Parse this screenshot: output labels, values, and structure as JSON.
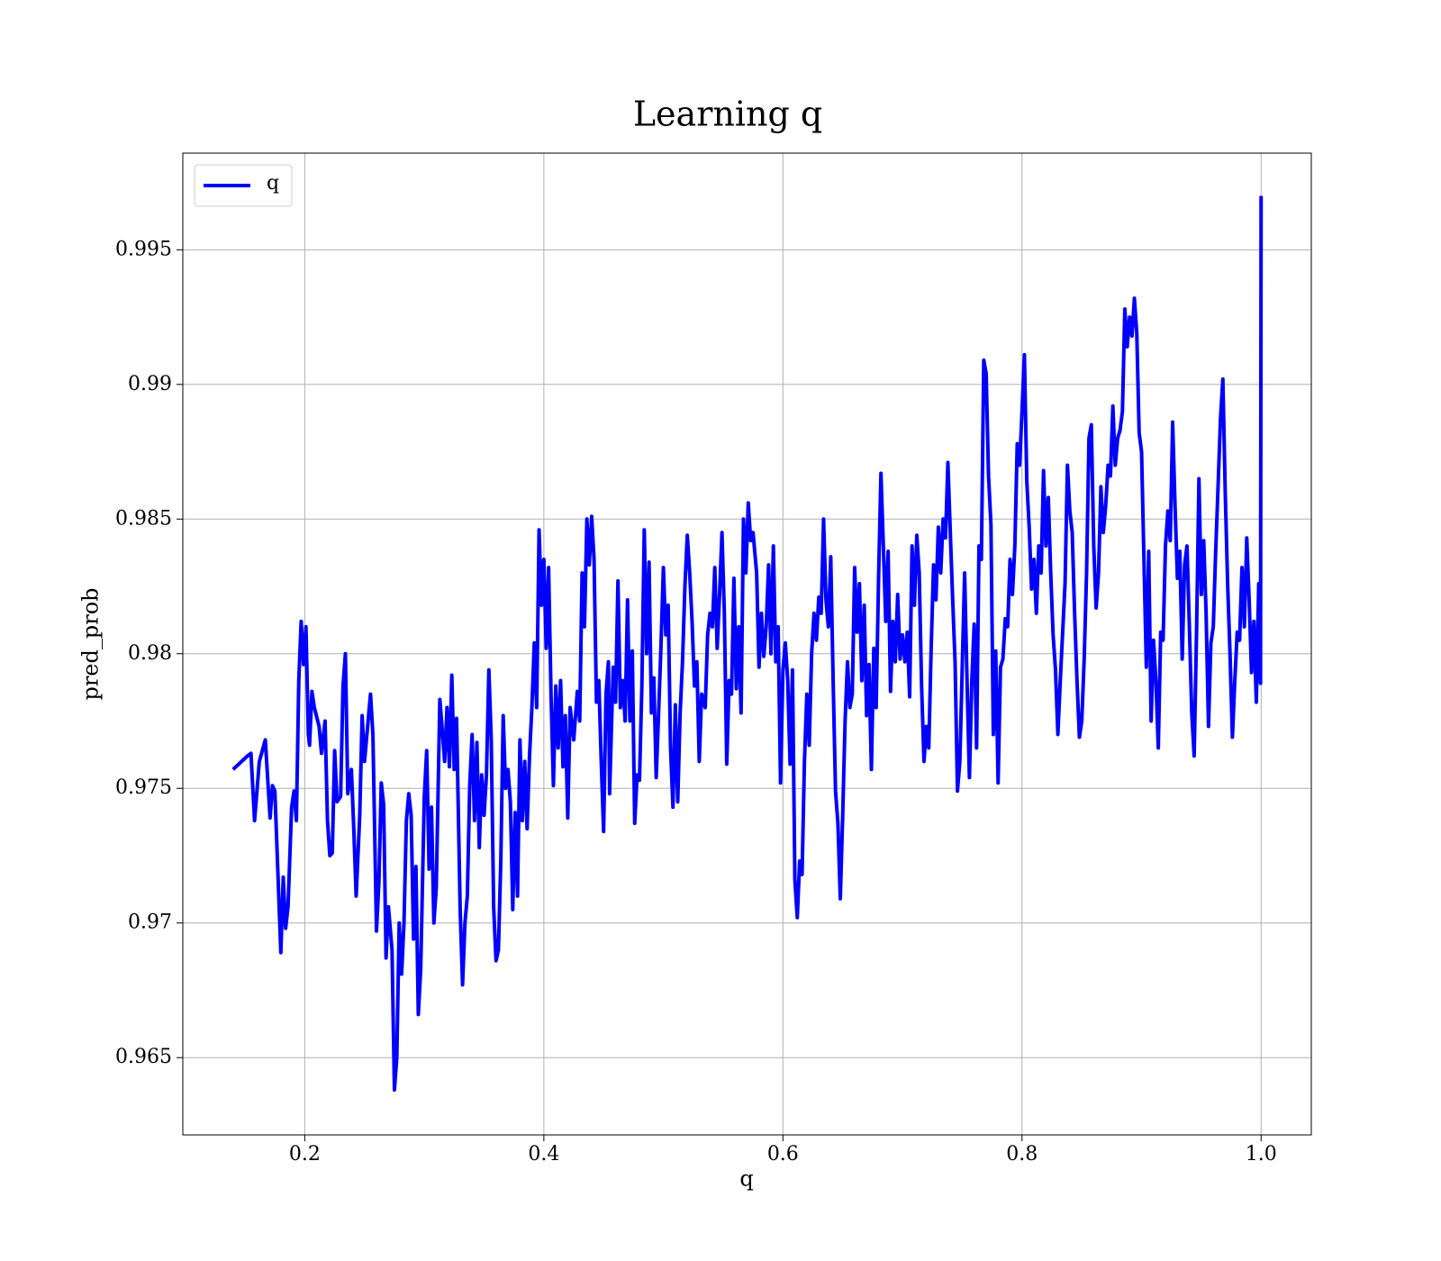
{
  "chart_data": {
    "type": "line",
    "title": "Learning q",
    "xlabel": "q",
    "ylabel": "pred_prob",
    "xlim": [
      0.098,
      1.042
    ],
    "ylim": [
      0.96213,
      0.99859
    ],
    "xticks": [
      0.2,
      0.4,
      0.6,
      0.8,
      {
        "value": 1,
        "label": "1.0"
      }
    ],
    "yticks": [
      0.965,
      0.97,
      0.975,
      0.98,
      0.985,
      0.99,
      0.995
    ],
    "grid": true,
    "legend": "upper left",
    "x": [
      0.14,
      0.152,
      0.155,
      0.158,
      0.162,
      0.167,
      0.171,
      0.173,
      0.175,
      0.18,
      0.182,
      0.184,
      0.186,
      0.189,
      0.191,
      0.193,
      0.195,
      0.197,
      0.199,
      0.201,
      0.203,
      0.204,
      0.206,
      0.208,
      0.212,
      0.214,
      0.217,
      0.219,
      0.221,
      0.223,
      0.225,
      0.227,
      0.23,
      0.232,
      0.234,
      0.236,
      0.239,
      0.241,
      0.243,
      0.246,
      0.248,
      0.25,
      0.255,
      0.257,
      0.26,
      0.262,
      0.264,
      0.266,
      0.268,
      0.27,
      0.273,
      0.275,
      0.277,
      0.279,
      0.281,
      0.283,
      0.285,
      0.287,
      0.289,
      0.291,
      0.293,
      0.295,
      0.297,
      0.3,
      0.302,
      0.304,
      0.306,
      0.308,
      0.31,
      0.313,
      0.315,
      0.317,
      0.319,
      0.321,
      0.323,
      0.325,
      0.327,
      0.33,
      0.332,
      0.334,
      0.336,
      0.338,
      0.34,
      0.342,
      0.344,
      0.346,
      0.348,
      0.35,
      0.352,
      0.354,
      0.356,
      0.358,
      0.36,
      0.362,
      0.364,
      0.366,
      0.368,
      0.37,
      0.372,
      0.374,
      0.376,
      0.378,
      0.38,
      0.382,
      0.384,
      0.386,
      0.388,
      0.39,
      0.392,
      0.394,
      0.396,
      0.398,
      0.4,
      0.402,
      0.404,
      0.406,
      0.408,
      0.41,
      0.412,
      0.414,
      0.416,
      0.418,
      0.42,
      0.422,
      0.425,
      0.428,
      0.43,
      0.432,
      0.434,
      0.436,
      0.438,
      0.44,
      0.442,
      0.444,
      0.446,
      0.448,
      0.45,
      0.452,
      0.454,
      0.455,
      0.458,
      0.46,
      0.462,
      0.464,
      0.466,
      0.468,
      0.47,
      0.472,
      0.474,
      0.476,
      0.478,
      0.48,
      0.482,
      0.484,
      0.486,
      0.488,
      0.49,
      0.492,
      0.494,
      0.496,
      0.498,
      0.5,
      0.502,
      0.504,
      0.506,
      0.508,
      0.51,
      0.512,
      0.514,
      0.516,
      0.518,
      0.52,
      0.522,
      0.524,
      0.526,
      0.528,
      0.53,
      0.532,
      0.535,
      0.537,
      0.539,
      0.541,
      0.543,
      0.545,
      0.547,
      0.549,
      0.551,
      0.553,
      0.555,
      0.557,
      0.559,
      0.561,
      0.563,
      0.565,
      0.567,
      0.569,
      0.571,
      0.573,
      0.575,
      0.578,
      0.58,
      0.582,
      0.584,
      0.586,
      0.588,
      0.59,
      0.592,
      0.594,
      0.596,
      0.598,
      0.6,
      0.602,
      0.604,
      0.606,
      0.608,
      0.61,
      0.612,
      0.614,
      0.616,
      0.618,
      0.62,
      0.622,
      0.624,
      0.626,
      0.628,
      0.63,
      0.632,
      0.634,
      0.636,
      0.638,
      0.64,
      0.642,
      0.644,
      0.646,
      0.648,
      0.65,
      0.652,
      0.654,
      0.656,
      0.658,
      0.66,
      0.662,
      0.664,
      0.666,
      0.668,
      0.67,
      0.672,
      0.674,
      0.676,
      0.678,
      0.68,
      0.682,
      0.684,
      0.686,
      0.688,
      0.69,
      0.692,
      0.694,
      0.696,
      0.698,
      0.7,
      0.702,
      0.704,
      0.706,
      0.708,
      0.71,
      0.712,
      0.714,
      0.716,
      0.718,
      0.72,
      0.722,
      0.724,
      0.726,
      0.728,
      0.73,
      0.732,
      0.734,
      0.736,
      0.738,
      0.74,
      0.742,
      0.744,
      0.746,
      0.748,
      0.75,
      0.752,
      0.754,
      0.756,
      0.758,
      0.76,
      0.762,
      0.764,
      0.766,
      0.768,
      0.77,
      0.772,
      0.774,
      0.776,
      0.778,
      0.78,
      0.782,
      0.784,
      0.786,
      0.788,
      0.79,
      0.792,
      0.794,
      0.796,
      0.798,
      0.8,
      0.802,
      0.804,
      0.806,
      0.808,
      0.81,
      0.812,
      0.814,
      0.816,
      0.818,
      0.82,
      0.822,
      0.824,
      0.826,
      0.828,
      0.83,
      0.832,
      0.834,
      0.836,
      0.838,
      0.84,
      0.842,
      0.844,
      0.846,
      0.848,
      0.85,
      0.852,
      0.854,
      0.856,
      0.858,
      0.86,
      0.862,
      0.864,
      0.866,
      0.868,
      0.87,
      0.872,
      0.874,
      0.876,
      0.878,
      0.88,
      0.882,
      0.884,
      0.886,
      0.888,
      0.89,
      0.892,
      0.894,
      0.896,
      0.898,
      0.9,
      0.902,
      0.904,
      0.906,
      0.908,
      0.91,
      0.912,
      0.914,
      0.916,
      0.918,
      0.92,
      0.922,
      0.924,
      0.926,
      0.928,
      0.93,
      0.932,
      0.934,
      0.936,
      0.938,
      0.94,
      0.942,
      0.944,
      0.946,
      0.948,
      0.95,
      0.952,
      0.954,
      0.956,
      0.958,
      0.96,
      0.962,
      0.964,
      0.966,
      0.968,
      0.97,
      0.972,
      0.974,
      0.976,
      0.978,
      0.98,
      0.982,
      0.984,
      0.986,
      0.988,
      0.99,
      0.992,
      0.994,
      0.996,
      0.998,
      0.9995,
      1.0
    ],
    "series": [
      {
        "name": "q",
        "color": "#0000ff",
        "values": [
          0.9757,
          0.9762,
          0.9763,
          0.9738,
          0.976,
          0.9768,
          0.9739,
          0.9751,
          0.9749,
          0.9689,
          0.9717,
          0.9698,
          0.9706,
          0.9743,
          0.9749,
          0.9738,
          0.979,
          0.9812,
          0.9796,
          0.981,
          0.977,
          0.9766,
          0.9786,
          0.978,
          0.9773,
          0.9763,
          0.9775,
          0.9738,
          0.9725,
          0.9726,
          0.9764,
          0.9745,
          0.9747,
          0.9788,
          0.98,
          0.9748,
          0.9757,
          0.9735,
          0.971,
          0.974,
          0.9777,
          0.976,
          0.9785,
          0.977,
          0.9697,
          0.9715,
          0.9752,
          0.9744,
          0.9687,
          0.9706,
          0.969,
          0.9638,
          0.965,
          0.97,
          0.9681,
          0.97,
          0.9738,
          0.9748,
          0.974,
          0.9694,
          0.9721,
          0.9666,
          0.9683,
          0.9747,
          0.9764,
          0.972,
          0.9743,
          0.97,
          0.9713,
          0.9783,
          0.9772,
          0.976,
          0.978,
          0.9758,
          0.9792,
          0.9757,
          0.9776,
          0.9705,
          0.9677,
          0.97,
          0.971,
          0.9751,
          0.977,
          0.9738,
          0.9767,
          0.9728,
          0.9755,
          0.974,
          0.9755,
          0.9794,
          0.9768,
          0.9706,
          0.9686,
          0.969,
          0.9723,
          0.9777,
          0.975,
          0.9757,
          0.9745,
          0.9705,
          0.9741,
          0.971,
          0.9768,
          0.9738,
          0.976,
          0.9735,
          0.9762,
          0.978,
          0.9804,
          0.978,
          0.9846,
          0.9818,
          0.9835,
          0.9802,
          0.9832,
          0.9785,
          0.9751,
          0.9788,
          0.9765,
          0.979,
          0.9758,
          0.9777,
          0.9739,
          0.978,
          0.9768,
          0.9786,
          0.9775,
          0.983,
          0.981,
          0.985,
          0.9833,
          0.9851,
          0.9835,
          0.9782,
          0.979,
          0.976,
          0.9734,
          0.9785,
          0.9797,
          0.9748,
          0.9795,
          0.9782,
          0.9827,
          0.978,
          0.979,
          0.9775,
          0.982,
          0.9775,
          0.9801,
          0.9737,
          0.9755,
          0.9753,
          0.9788,
          0.9846,
          0.98,
          0.9834,
          0.9778,
          0.9791,
          0.9754,
          0.9778,
          0.9803,
          0.9832,
          0.9807,
          0.9818,
          0.9765,
          0.9743,
          0.9781,
          0.9745,
          0.9778,
          0.9797,
          0.9825,
          0.9844,
          0.983,
          0.9812,
          0.9788,
          0.9797,
          0.976,
          0.9785,
          0.978,
          0.9807,
          0.9815,
          0.981,
          0.9832,
          0.9802,
          0.9822,
          0.9845,
          0.9815,
          0.9759,
          0.979,
          0.9785,
          0.9828,
          0.9787,
          0.981,
          0.9778,
          0.985,
          0.983,
          0.9856,
          0.9842,
          0.9845,
          0.983,
          0.9795,
          0.9815,
          0.9799,
          0.981,
          0.9833,
          0.98,
          0.984,
          0.9797,
          0.981,
          0.9752,
          0.9794,
          0.9804,
          0.979,
          0.9759,
          0.9794,
          0.9716,
          0.9702,
          0.9723,
          0.9718,
          0.976,
          0.9785,
          0.9766,
          0.98,
          0.9815,
          0.9805,
          0.9821,
          0.9815,
          0.985,
          0.982,
          0.981,
          0.9836,
          0.979,
          0.9749,
          0.9737,
          0.9709,
          0.974,
          0.9775,
          0.9797,
          0.978,
          0.9785,
          0.9832,
          0.9808,
          0.9826,
          0.979,
          0.9818,
          0.9777,
          0.9796,
          0.9757,
          0.9802,
          0.978,
          0.9828,
          0.9867,
          0.984,
          0.9812,
          0.9838,
          0.9786,
          0.9812,
          0.9797,
          0.9822,
          0.9798,
          0.9807,
          0.9797,
          0.9808,
          0.9784,
          0.984,
          0.9818,
          0.9844,
          0.983,
          0.9788,
          0.976,
          0.9773,
          0.9765,
          0.9802,
          0.9833,
          0.982,
          0.9847,
          0.983,
          0.985,
          0.9843,
          0.9871,
          0.9845,
          0.982,
          0.9797,
          0.9749,
          0.976,
          0.9795,
          0.983,
          0.979,
          0.9754,
          0.979,
          0.9811,
          0.9765,
          0.984,
          0.9835,
          0.9909,
          0.9904,
          0.9866,
          0.9848,
          0.977,
          0.9801,
          0.9752,
          0.9795,
          0.9798,
          0.9813,
          0.981,
          0.9835,
          0.9822,
          0.984,
          0.9878,
          0.987,
          0.989,
          0.9911,
          0.9864,
          0.9847,
          0.9824,
          0.9835,
          0.9815,
          0.984,
          0.983,
          0.9868,
          0.984,
          0.9858,
          0.983,
          0.9807,
          0.9794,
          0.977,
          0.979,
          0.9808,
          0.9826,
          0.987,
          0.9853,
          0.9845,
          0.9815,
          0.979,
          0.9769,
          0.9775,
          0.9798,
          0.983,
          0.988,
          0.9885,
          0.984,
          0.9817,
          0.983,
          0.9862,
          0.9845,
          0.9855,
          0.987,
          0.9866,
          0.9892,
          0.987,
          0.988,
          0.9883,
          0.989,
          0.9928,
          0.9914,
          0.9925,
          0.9918,
          0.9932,
          0.9919,
          0.9882,
          0.9875,
          0.9835,
          0.9795,
          0.9838,
          0.9775,
          0.9805,
          0.979,
          0.9765,
          0.9808,
          0.9805,
          0.984,
          0.9853,
          0.9842,
          0.9886,
          0.9855,
          0.9828,
          0.9838,
          0.9798,
          0.9833,
          0.984,
          0.981,
          0.9778,
          0.9762,
          0.9808,
          0.9865,
          0.9822,
          0.9842,
          0.9815,
          0.9773,
          0.9804,
          0.981,
          0.9838,
          0.9862,
          0.9887,
          0.9902,
          0.986,
          0.9826,
          0.98,
          0.9769,
          0.979,
          0.9808,
          0.9805,
          0.9832,
          0.981,
          0.9843,
          0.982,
          0.9793,
          0.9812,
          0.9782,
          0.9826,
          0.9789,
          0.997
        ]
      }
    ]
  }
}
